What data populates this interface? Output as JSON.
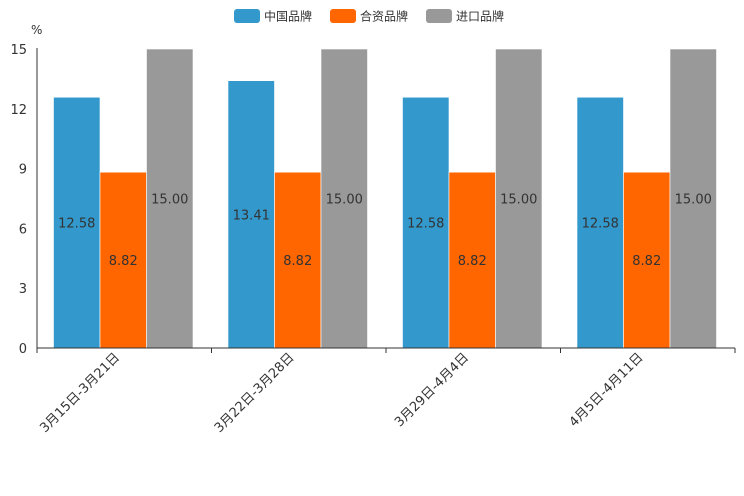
{
  "chart_data": {
    "type": "bar",
    "title": "",
    "xlabel": "",
    "ylabel": "%",
    "ylim": [
      0,
      15
    ],
    "yticks": [
      "0",
      "3",
      "6",
      "9",
      "12",
      "15"
    ],
    "categories": [
      "3月15日-3月21日",
      "3月22日-3月28日",
      "3月29日-4月4日",
      "4月5日-4月11日"
    ],
    "series": [
      {
        "name": "中国品牌",
        "color": "#3399cc",
        "values": [
          12.58,
          13.41,
          12.58,
          12.58
        ],
        "labels": [
          "12.58",
          "13.41",
          "12.58",
          "12.58"
        ]
      },
      {
        "name": "合资品牌",
        "color": "#ff6600",
        "values": [
          8.82,
          8.82,
          8.82,
          8.82
        ],
        "labels": [
          "8.82",
          "8.82",
          "8.82",
          "8.82"
        ]
      },
      {
        "name": "进口品牌",
        "color": "#999999",
        "values": [
          15.0,
          15.0,
          15.0,
          15.0
        ],
        "labels": [
          "15.00",
          "15.00",
          "15.00",
          "15.00"
        ]
      }
    ],
    "legend_position": "top-center",
    "grid": false
  }
}
